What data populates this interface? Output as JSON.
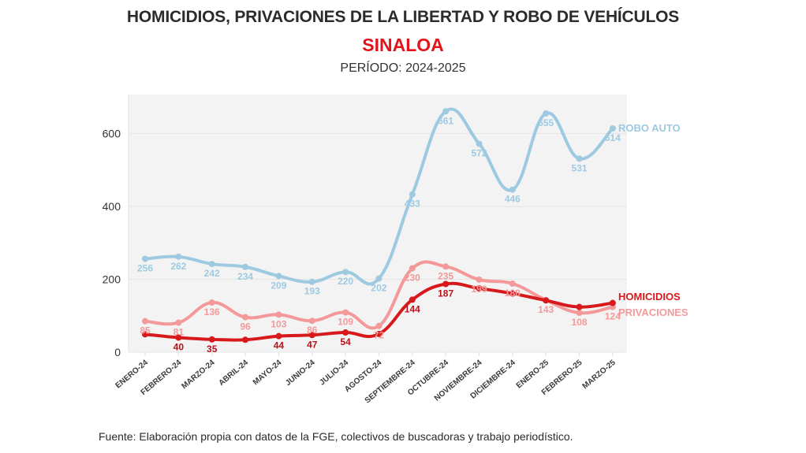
{
  "header": {
    "title": "HOMICIDIOS, PRIVACIONES DE LA LIBERTAD Y ROBO DE VEHÍCULOS",
    "subtitle": "SINALOA",
    "period": "PERÍODO: 2024-2025"
  },
  "footer": {
    "source": "Fuente: Elaboración propia con datos de la FGE, colectivos de buscadoras y trabajo periodístico."
  },
  "chart_data": {
    "type": "line",
    "title": "HOMICIDIOS, PRIVACIONES DE LA LIBERTAD Y ROBO DE VEHÍCULOS",
    "subtitle": "SINALOA",
    "xlabel": "",
    "ylabel": "",
    "ylim": [
      0,
      707
    ],
    "yticks": [
      0,
      200,
      400,
      600
    ],
    "grid": true,
    "legend": "right, inline labels at line ends",
    "categories": [
      "ENERO-24",
      "FEBRERO-24",
      "MARZO-24",
      "ABRIL-24",
      "MAYO-24",
      "JUNIO-24",
      "JULIO-24",
      "AGOSTO-24",
      "SEPTIEMBRE-24",
      "OCTUBRE-24",
      "NOVIEMBRE-24",
      "DICIEMBRE-24",
      "ENERO-25",
      "FEBRERO-25",
      "MARZO-25"
    ],
    "series": [
      {
        "name": "ROBO AUTO",
        "color": "#9ecae1",
        "values": [
          256,
          262,
          242,
          234,
          209,
          193,
          220,
          202,
          433,
          661,
          572,
          446,
          655,
          531,
          614
        ],
        "labels": [
          "256",
          "262",
          "242",
          "234",
          "209",
          "193",
          "220",
          "202",
          "433",
          "661",
          "572",
          "446",
          "655",
          "531",
          "614"
        ]
      },
      {
        "name": "PRIVACIONES",
        "color": "#f4999a",
        "values": [
          85,
          81,
          136,
          96,
          103,
          86,
          109,
          72,
          230,
          235,
          199,
          188,
          143,
          108,
          124
        ],
        "labels": [
          "85",
          "81",
          "136",
          "96",
          "103",
          "86",
          "109",
          "72",
          "230",
          "235",
          "199",
          "188",
          "143",
          "108",
          "124"
        ]
      },
      {
        "name": "HOMICIDIOS",
        "color": "#d7191c",
        "values": [
          49,
          40,
          35,
          34,
          44,
          47,
          54,
          50,
          144,
          187,
          175,
          161,
          142,
          124,
          135
        ],
        "labels": [
          "",
          "40",
          "35",
          "",
          "44",
          "47",
          "54",
          "",
          "144",
          "187",
          "",
          "",
          "",
          "",
          ""
        ]
      }
    ]
  }
}
